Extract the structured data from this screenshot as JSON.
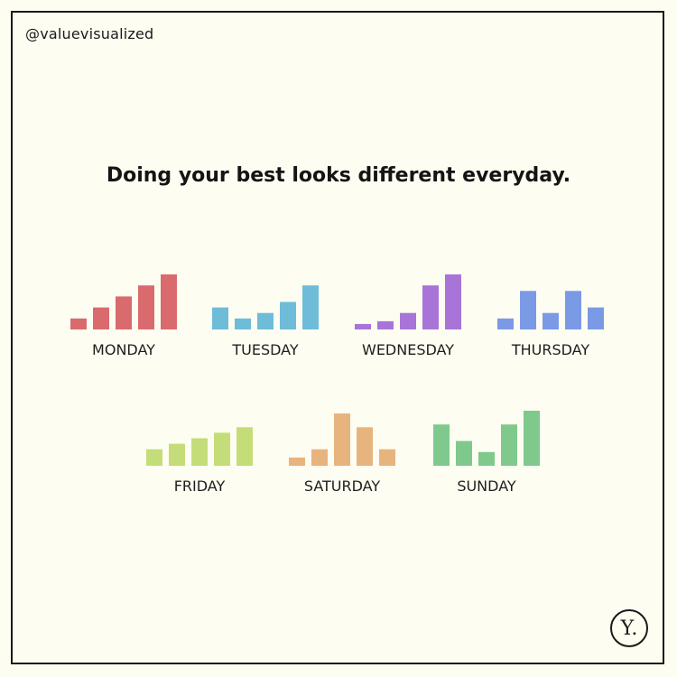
{
  "handle": "@valuevisualized",
  "headline": "Doing your best looks different everyday.",
  "logo_text": "Y.",
  "chart_data": {
    "type": "bar",
    "title": "Doing your best looks different everyday.",
    "charts": [
      {
        "day": "MONDAY",
        "color": "#d96b6e",
        "values": [
          2,
          4,
          6,
          8,
          10
        ]
      },
      {
        "day": "TUESDAY",
        "color": "#6fbcd9",
        "values": [
          4,
          2,
          3,
          5,
          8
        ]
      },
      {
        "day": "WEDNESDAY",
        "color": "#a874d8",
        "values": [
          1,
          1.5,
          3,
          8,
          10
        ]
      },
      {
        "day": "THURSDAY",
        "color": "#7b9ae6",
        "values": [
          2,
          7,
          3,
          7,
          4
        ]
      },
      {
        "day": "FRIDAY",
        "color": "#c4dd78",
        "values": [
          3,
          4,
          5,
          6,
          7
        ]
      },
      {
        "day": "SATURDAY",
        "color": "#e7b47e",
        "values": [
          1.5,
          3,
          9.5,
          7,
          3
        ]
      },
      {
        "day": "SUNDAY",
        "color": "#7fc98c",
        "values": [
          7.5,
          4.5,
          2.5,
          7.5,
          10
        ]
      }
    ],
    "ylim": [
      0,
      10
    ]
  }
}
